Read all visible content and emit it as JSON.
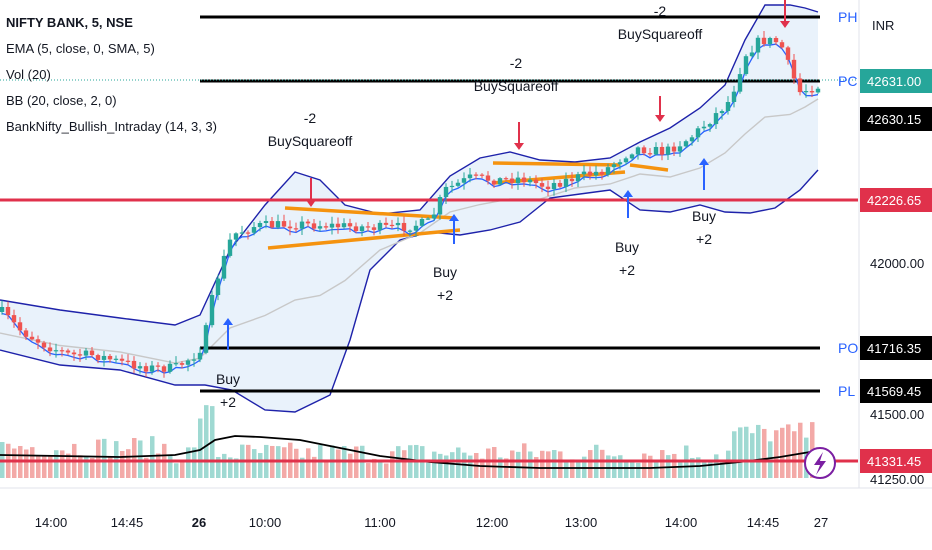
{
  "legend": {
    "symbol": "NIFTY BANK, 5, NSE",
    "ema": "EMA (5, close, 0, SMA, 5)",
    "vol": "Vol (20)",
    "bb": "BB (20, close, 2, 0)",
    "strategy": "BankNifty_Bullish_Intraday (14, 3, 3)"
  },
  "currency": "INR",
  "chart_data": {
    "type": "candlestick",
    "x_ticks": [
      "14:00",
      "14:45",
      "26",
      "10:00",
      "11:00",
      "12:00",
      "13:00",
      "14:00",
      "14:45",
      "27"
    ],
    "y_ticks": [
      42000.0,
      41500.0,
      41250.0
    ],
    "price_labels": [
      {
        "name": "current",
        "value": "42631.00",
        "color": "#26a69a"
      },
      {
        "name": "ema",
        "value": "42630.15",
        "color": "#000000"
      },
      {
        "name": "support",
        "value": "42226.65",
        "color": "#e0314b"
      },
      {
        "name": "PO",
        "value": "41716.35",
        "color": "#000000"
      },
      {
        "name": "PL",
        "value": "41569.45",
        "color": "#000000"
      },
      {
        "name": "volume-line",
        "value": "41331.45",
        "color": "#e0314b"
      }
    ],
    "pivot_labels": [
      "PH",
      "PC",
      "PO",
      "PL"
    ],
    "annotations": [
      {
        "lines": [
          "-2",
          "BuySquareoff"
        ],
        "type": "sell"
      },
      {
        "lines": [
          "-2",
          "BuySquareoff"
        ],
        "type": "sell"
      },
      {
        "lines": [
          "-2",
          "BuySquareoff"
        ],
        "type": "sell"
      },
      {
        "lines": [
          "Buy",
          "+2"
        ],
        "type": "buy"
      },
      {
        "lines": [
          "Buy",
          "+2"
        ],
        "type": "buy"
      },
      {
        "lines": [
          "Buy",
          "+2"
        ],
        "type": "buy"
      },
      {
        "lines": [
          "Buy",
          "+2"
        ],
        "type": "buy"
      }
    ],
    "colors": {
      "up": "#26a69a",
      "down": "#ef5350",
      "bb": "#1e22aa",
      "bb_fill": "#e3effa",
      "ema": "#2962ff",
      "basis": "#c8c8c8",
      "trend": "#f5930f",
      "signal_up": "#2962ff",
      "signal_down": "#e0314b",
      "hline": "#000000",
      "redline": "#e0314b"
    }
  }
}
